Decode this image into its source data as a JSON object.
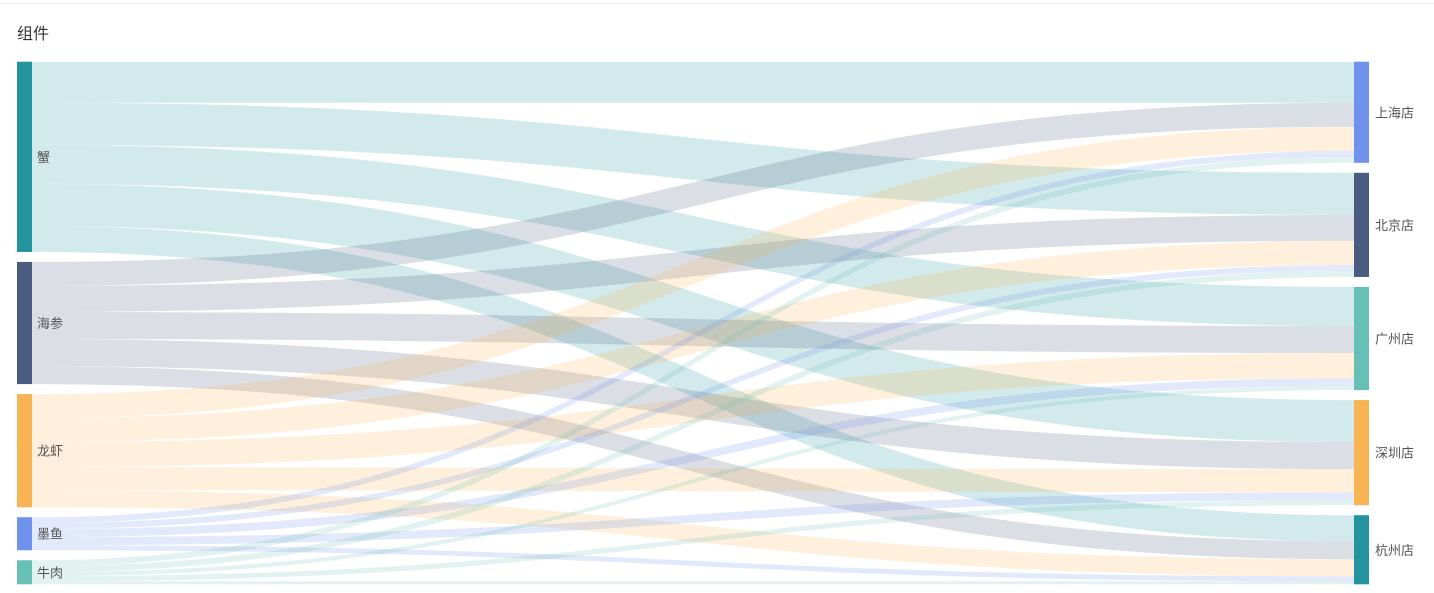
{
  "panel": {
    "title": "组件"
  },
  "chart_data": {
    "type": "sankey",
    "sources": [
      {
        "name": "蟹",
        "color": "#23949e"
      },
      {
        "name": "海参",
        "color": "#4a5c7f"
      },
      {
        "name": "龙虾",
        "color": "#f8b452"
      },
      {
        "name": "墨鱼",
        "color": "#6f93ec"
      },
      {
        "name": "牛肉",
        "color": "#67c0b6"
      }
    ],
    "targets": [
      {
        "name": "上海店",
        "color": "#6f93ec"
      },
      {
        "name": "北京店",
        "color": "#4a5c7f"
      },
      {
        "name": "广州店",
        "color": "#67c0b6"
      },
      {
        "name": "深圳店",
        "color": "#f8b452"
      },
      {
        "name": "杭州店",
        "color": "#23949e"
      }
    ],
    "links": [
      {
        "source": "蟹",
        "target": "上海店",
        "value": 41
      },
      {
        "source": "蟹",
        "target": "北京店",
        "value": 42
      },
      {
        "source": "蟹",
        "target": "广州店",
        "value": 39
      },
      {
        "source": "蟹",
        "target": "深圳店",
        "value": 42
      },
      {
        "source": "蟹",
        "target": "杭州店",
        "value": 26
      },
      {
        "source": "海参",
        "target": "上海店",
        "value": 24
      },
      {
        "source": "海参",
        "target": "北京店",
        "value": 26
      },
      {
        "source": "海参",
        "target": "广州店",
        "value": 27
      },
      {
        "source": "海参",
        "target": "深圳店",
        "value": 27
      },
      {
        "source": "海参",
        "target": "杭州店",
        "value": 18
      },
      {
        "source": "龙虾",
        "target": "上海店",
        "value": 24
      },
      {
        "source": "龙虾",
        "target": "北京店",
        "value": 24
      },
      {
        "source": "龙虾",
        "target": "广州店",
        "value": 25
      },
      {
        "source": "龙虾",
        "target": "深圳店",
        "value": 23
      },
      {
        "source": "龙虾",
        "target": "杭州店",
        "value": 17
      },
      {
        "source": "墨鱼",
        "target": "上海店",
        "value": 6
      },
      {
        "source": "墨鱼",
        "target": "北京店",
        "value": 6
      },
      {
        "source": "墨鱼",
        "target": "广州店",
        "value": 8
      },
      {
        "source": "墨鱼",
        "target": "深圳店",
        "value": 8
      },
      {
        "source": "墨鱼",
        "target": "杭州店",
        "value": 5
      },
      {
        "source": "牛肉",
        "target": "上海店",
        "value": 6
      },
      {
        "source": "牛肉",
        "target": "北京店",
        "value": 6
      },
      {
        "source": "牛肉",
        "target": "广州店",
        "value": 4
      },
      {
        "source": "牛肉",
        "target": "深圳店",
        "value": 5
      },
      {
        "source": "牛肉",
        "target": "杭州店",
        "value": 3
      }
    ],
    "link_opacity": 0.2
  }
}
